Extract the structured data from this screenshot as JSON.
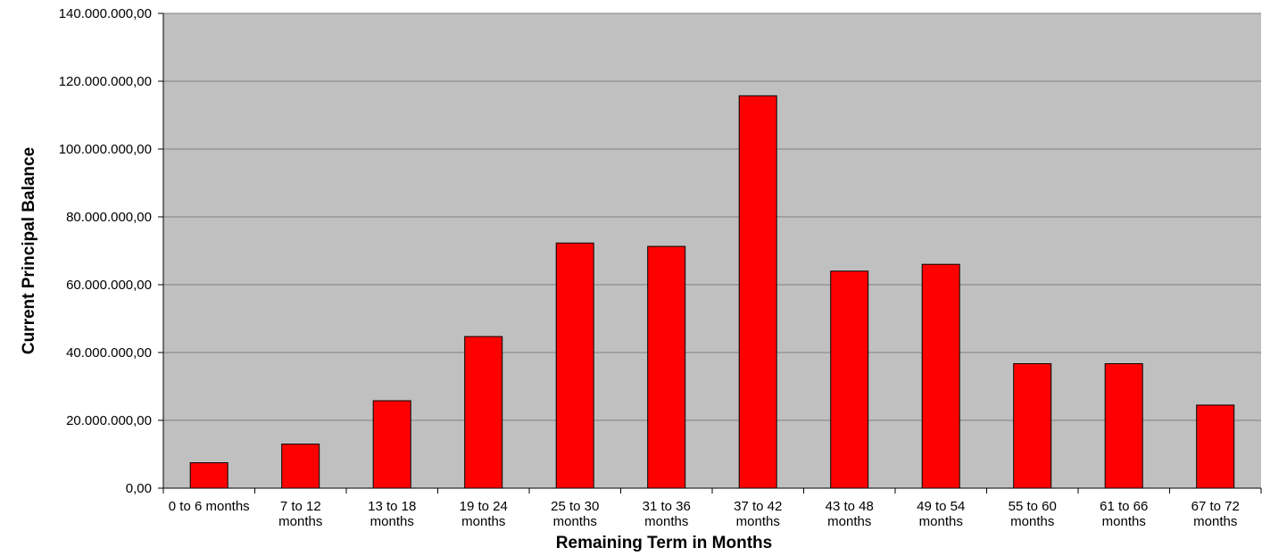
{
  "chart_data": {
    "type": "bar",
    "title": "",
    "xlabel": "Remaining Term in Months",
    "ylabel": "Current Principal Balance",
    "ylim": [
      0,
      140000000
    ],
    "yticks": [
      {
        "value": 0,
        "label": "0,00"
      },
      {
        "value": 20000000,
        "label": "20.000.000,00"
      },
      {
        "value": 40000000,
        "label": "40.000.000,00"
      },
      {
        "value": 60000000,
        "label": "60.000.000,00"
      },
      {
        "value": 80000000,
        "label": "80.000.000,00"
      },
      {
        "value": 100000000,
        "label": "100.000.000,00"
      },
      {
        "value": 120000000,
        "label": "120.000.000,00"
      },
      {
        "value": 140000000,
        "label": "140.000.000,00"
      }
    ],
    "categories": [
      [
        "0 to 6 months"
      ],
      [
        "7 to 12",
        "months"
      ],
      [
        "13 to 18",
        "months"
      ],
      [
        "19 to 24",
        "months"
      ],
      [
        "25 to 30",
        "months"
      ],
      [
        "31 to 36",
        "months"
      ],
      [
        "37 to 42",
        "months"
      ],
      [
        "43 to 48",
        "months"
      ],
      [
        "49 to 54",
        "months"
      ],
      [
        "55 to 60",
        "months"
      ],
      [
        "61 to 66",
        "months"
      ],
      [
        "67 to 72",
        "months"
      ]
    ],
    "values": [
      7500000,
      13000000,
      25800000,
      44700000,
      72300000,
      71300000,
      115700000,
      64000000,
      66000000,
      36700000,
      36700000,
      24500000
    ],
    "grid": true,
    "legend": "none",
    "colors": {
      "bar": "#ff0000",
      "bar_outline": "#000000",
      "plot_background": "#c0c0c0",
      "gridline": "#808080"
    }
  }
}
